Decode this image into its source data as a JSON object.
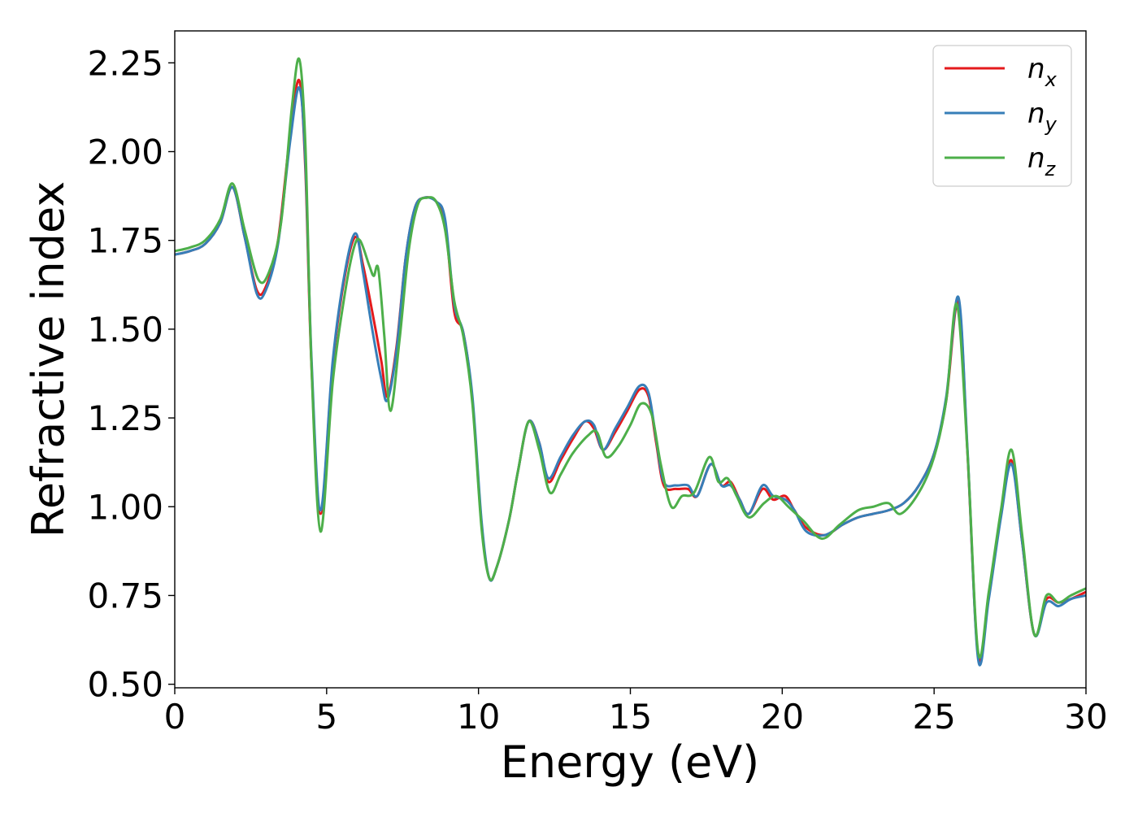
{
  "chart_data": {
    "type": "line",
    "xlabel": "Energy (eV)",
    "ylabel": "Refractive index",
    "xlim": [
      0,
      30
    ],
    "ylim": [
      0.49,
      2.34
    ],
    "xticks": [
      0,
      5,
      10,
      15,
      20,
      25,
      30
    ],
    "xtick_labels": [
      "0",
      "5",
      "10",
      "15",
      "20",
      "25",
      "30"
    ],
    "yticks": [
      0.5,
      0.75,
      1.0,
      1.25,
      1.5,
      1.75,
      2.0,
      2.25
    ],
    "ytick_labels": [
      "0.50",
      "0.75",
      "1.00",
      "1.25",
      "1.50",
      "1.75",
      "2.00",
      "2.25"
    ],
    "grid": false,
    "legend_position": "top-right",
    "series": [
      {
        "name": "n_x",
        "label_base": "n",
        "label_sub": "x",
        "color": "#e41a1c",
        "x": [
          0,
          0.5,
          1.0,
          1.5,
          1.9,
          2.3,
          2.7,
          3.0,
          3.4,
          3.8,
          4.1,
          4.3,
          4.5,
          4.8,
          5.2,
          5.6,
          5.95,
          6.2,
          6.5,
          6.8,
          7.0,
          7.3,
          7.6,
          7.9,
          8.2,
          8.6,
          8.9,
          9.2,
          9.5,
          9.8,
          10.1,
          10.35,
          10.6,
          11.0,
          11.3,
          11.65,
          12.0,
          12.3,
          12.7,
          13.1,
          13.5,
          13.8,
          14.1,
          14.5,
          14.9,
          15.3,
          15.6,
          15.85,
          16.1,
          16.5,
          16.9,
          17.2,
          17.65,
          18.0,
          18.3,
          18.6,
          18.9,
          19.35,
          19.7,
          20.1,
          20.4,
          20.8,
          21.4,
          22.0,
          22.5,
          23.0,
          23.5,
          24.0,
          24.5,
          25.0,
          25.4,
          25.8,
          26.1,
          26.45,
          26.8,
          27.2,
          27.55,
          27.9,
          28.3,
          28.7,
          29.1,
          29.5,
          30.0
        ],
        "y": [
          1.71,
          1.72,
          1.74,
          1.8,
          1.9,
          1.76,
          1.61,
          1.62,
          1.75,
          2.05,
          2.2,
          1.95,
          1.4,
          0.98,
          1.4,
          1.65,
          1.76,
          1.68,
          1.55,
          1.41,
          1.31,
          1.45,
          1.7,
          1.84,
          1.87,
          1.86,
          1.8,
          1.55,
          1.49,
          1.3,
          0.95,
          0.8,
          0.83,
          0.96,
          1.1,
          1.24,
          1.18,
          1.07,
          1.13,
          1.19,
          1.24,
          1.22,
          1.16,
          1.21,
          1.27,
          1.33,
          1.31,
          1.18,
          1.06,
          1.05,
          1.05,
          1.03,
          1.12,
          1.06,
          1.07,
          1.02,
          0.98,
          1.05,
          1.02,
          1.03,
          0.99,
          0.94,
          0.92,
          0.95,
          0.97,
          0.98,
          0.99,
          1.01,
          1.06,
          1.15,
          1.3,
          1.58,
          1.15,
          0.58,
          0.75,
          0.98,
          1.13,
          0.9,
          0.64,
          0.74,
          0.73,
          0.74,
          0.76
        ]
      },
      {
        "name": "n_y",
        "label_base": "n",
        "label_sub": "y",
        "color": "#377eb8",
        "x": [
          0,
          0.5,
          1.0,
          1.5,
          1.9,
          2.3,
          2.7,
          3.0,
          3.4,
          3.8,
          4.1,
          4.3,
          4.5,
          4.8,
          5.2,
          5.6,
          5.95,
          6.2,
          6.5,
          6.8,
          7.0,
          7.3,
          7.6,
          7.9,
          8.2,
          8.6,
          8.9,
          9.2,
          9.5,
          9.8,
          10.1,
          10.35,
          10.6,
          11.0,
          11.3,
          11.65,
          12.0,
          12.3,
          12.7,
          13.1,
          13.5,
          13.8,
          14.1,
          14.5,
          14.9,
          15.3,
          15.6,
          15.85,
          16.1,
          16.5,
          16.9,
          17.2,
          17.65,
          18.0,
          18.3,
          18.6,
          18.9,
          19.35,
          19.7,
          20.1,
          20.4,
          20.8,
          21.4,
          22.0,
          22.5,
          23.0,
          23.5,
          24.0,
          24.5,
          25.0,
          25.4,
          25.8,
          26.1,
          26.45,
          26.8,
          27.2,
          27.55,
          27.9,
          28.3,
          28.7,
          29.1,
          29.5,
          30.0
        ],
        "y": [
          1.71,
          1.72,
          1.74,
          1.8,
          1.9,
          1.76,
          1.6,
          1.61,
          1.74,
          2.03,
          2.18,
          1.97,
          1.42,
          0.99,
          1.41,
          1.66,
          1.77,
          1.66,
          1.5,
          1.36,
          1.3,
          1.44,
          1.7,
          1.84,
          1.87,
          1.86,
          1.81,
          1.57,
          1.49,
          1.31,
          0.96,
          0.8,
          0.83,
          0.96,
          1.1,
          1.24,
          1.18,
          1.08,
          1.14,
          1.2,
          1.24,
          1.23,
          1.16,
          1.22,
          1.28,
          1.34,
          1.32,
          1.19,
          1.07,
          1.06,
          1.06,
          1.03,
          1.12,
          1.06,
          1.06,
          1.02,
          0.98,
          1.06,
          1.03,
          1.02,
          0.99,
          0.93,
          0.92,
          0.95,
          0.97,
          0.98,
          0.99,
          1.01,
          1.06,
          1.15,
          1.31,
          1.59,
          1.16,
          0.57,
          0.74,
          0.97,
          1.12,
          0.9,
          0.64,
          0.73,
          0.72,
          0.74,
          0.75
        ]
      },
      {
        "name": "n_z",
        "label_base": "n",
        "label_sub": "z",
        "color": "#4daf4a",
        "x": [
          0,
          0.5,
          1.0,
          1.5,
          1.9,
          2.3,
          2.75,
          3.1,
          3.5,
          3.85,
          4.1,
          4.3,
          4.5,
          4.8,
          5.2,
          5.6,
          5.9,
          6.1,
          6.4,
          6.55,
          6.7,
          6.9,
          7.1,
          7.4,
          7.7,
          8.0,
          8.3,
          8.6,
          8.9,
          9.2,
          9.5,
          9.8,
          10.1,
          10.35,
          10.6,
          11.0,
          11.3,
          11.65,
          12.0,
          12.35,
          12.7,
          13.1,
          13.6,
          13.9,
          14.2,
          14.6,
          15.0,
          15.35,
          15.7,
          16.0,
          16.35,
          16.7,
          17.1,
          17.6,
          17.9,
          18.2,
          18.5,
          18.9,
          19.4,
          19.8,
          20.2,
          20.7,
          21.3,
          21.9,
          22.5,
          23.0,
          23.5,
          23.9,
          24.5,
          25.0,
          25.4,
          25.75,
          26.1,
          26.45,
          26.8,
          27.2,
          27.55,
          27.9,
          28.3,
          28.7,
          29.1,
          29.5,
          30.0
        ],
        "y": [
          1.72,
          1.73,
          1.75,
          1.81,
          1.91,
          1.78,
          1.64,
          1.66,
          1.8,
          2.12,
          2.26,
          2.02,
          1.4,
          0.93,
          1.35,
          1.6,
          1.73,
          1.75,
          1.68,
          1.65,
          1.67,
          1.48,
          1.27,
          1.47,
          1.72,
          1.85,
          1.87,
          1.86,
          1.78,
          1.58,
          1.48,
          1.29,
          0.94,
          0.8,
          0.83,
          0.96,
          1.1,
          1.24,
          1.16,
          1.04,
          1.09,
          1.15,
          1.2,
          1.21,
          1.14,
          1.17,
          1.23,
          1.29,
          1.26,
          1.12,
          1.0,
          1.03,
          1.04,
          1.14,
          1.07,
          1.08,
          1.03,
          0.97,
          1.01,
          1.03,
          1.0,
          0.96,
          0.91,
          0.95,
          0.99,
          1.0,
          1.01,
          0.98,
          1.04,
          1.14,
          1.3,
          1.57,
          1.15,
          0.59,
          0.76,
          0.99,
          1.16,
          0.92,
          0.64,
          0.75,
          0.73,
          0.75,
          0.77
        ]
      }
    ]
  }
}
